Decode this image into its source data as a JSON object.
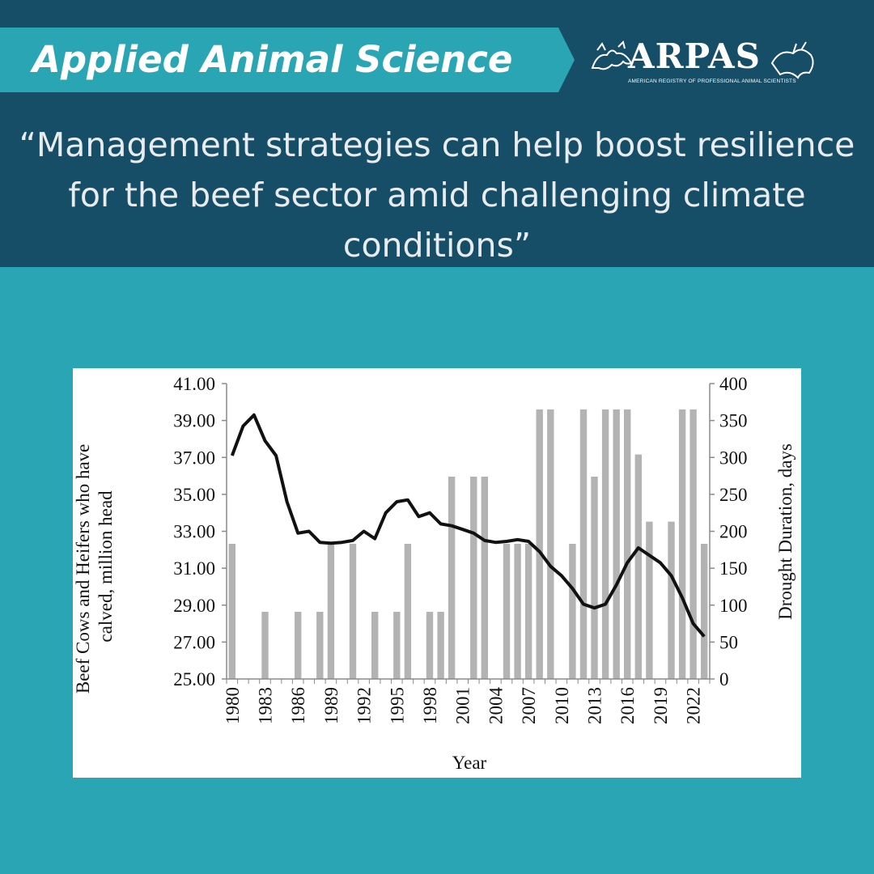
{
  "header": {
    "banner_title": "Applied Animal Science",
    "logo": {
      "wordmark": "ARPAS",
      "subtitle": "AMERICAN REGISTRY OF PROFESSIONAL ANIMAL SCIENTISTS"
    },
    "quote": "“Management strategies can help boost resilience for the beef sector amid challenging climate conditions”"
  },
  "colors": {
    "background": "#29a5b3",
    "header_band": "#164d67",
    "banner": "#29a5b3",
    "bars": "#b3b3b3",
    "line": "#111111"
  },
  "chart_data": {
    "type": "bar",
    "title": "",
    "xlabel": "Year",
    "ylabel_left": "Beef Cows and Heifers who have calved, million head",
    "ylabel_right": "Drought Duration, days",
    "x": [
      1980,
      1981,
      1982,
      1983,
      1984,
      1985,
      1986,
      1987,
      1988,
      1989,
      1990,
      1991,
      1992,
      1993,
      1994,
      1995,
      1996,
      1997,
      1998,
      1999,
      2000,
      2001,
      2002,
      2003,
      2004,
      2005,
      2006,
      2007,
      2008,
      2009,
      2010,
      2011,
      2012,
      2013,
      2014,
      2015,
      2016,
      2017,
      2018,
      2019,
      2020,
      2021,
      2022,
      2023
    ],
    "x_tick_labels": [
      "1980",
      "1983",
      "1986",
      "1989",
      "1992",
      "1995",
      "1998",
      "2001",
      "2004",
      "2007",
      "2010",
      "2013",
      "2016",
      "2019",
      "2022"
    ],
    "left_ylim": [
      25,
      41
    ],
    "left_ticks": [
      "25.00",
      "27.00",
      "29.00",
      "31.00",
      "33.00",
      "35.00",
      "37.00",
      "39.00",
      "41.00"
    ],
    "right_ylim": [
      0,
      400
    ],
    "right_ticks": [
      "0",
      "50",
      "100",
      "150",
      "200",
      "250",
      "300",
      "350",
      "400"
    ],
    "grid": false,
    "series": [
      {
        "type": "bar",
        "axis": "right",
        "values": [
          183,
          0,
          0,
          91,
          0,
          0,
          91,
          0,
          91,
          183,
          0,
          183,
          0,
          91,
          0,
          91,
          183,
          0,
          91,
          91,
          274,
          0,
          274,
          274,
          0,
          183,
          183,
          183,
          365,
          365,
          0,
          183,
          365,
          274,
          365,
          365,
          365,
          304,
          213,
          0,
          213,
          365,
          365,
          183
        ]
      },
      {
        "type": "line",
        "axis": "left",
        "values": [
          37.1,
          38.7,
          39.3,
          37.9,
          37.1,
          34.6,
          32.9,
          33.0,
          32.4,
          32.35,
          32.4,
          32.5,
          33.0,
          32.6,
          34.0,
          34.6,
          34.7,
          33.8,
          34.0,
          33.4,
          33.3,
          33.1,
          32.9,
          32.5,
          32.4,
          32.45,
          32.55,
          32.45,
          31.9,
          31.1,
          30.6,
          29.9,
          29.05,
          28.85,
          29.05,
          30.1,
          31.3,
          32.1,
          31.7,
          31.3,
          30.6,
          29.4,
          28.0,
          27.3
        ]
      }
    ]
  }
}
